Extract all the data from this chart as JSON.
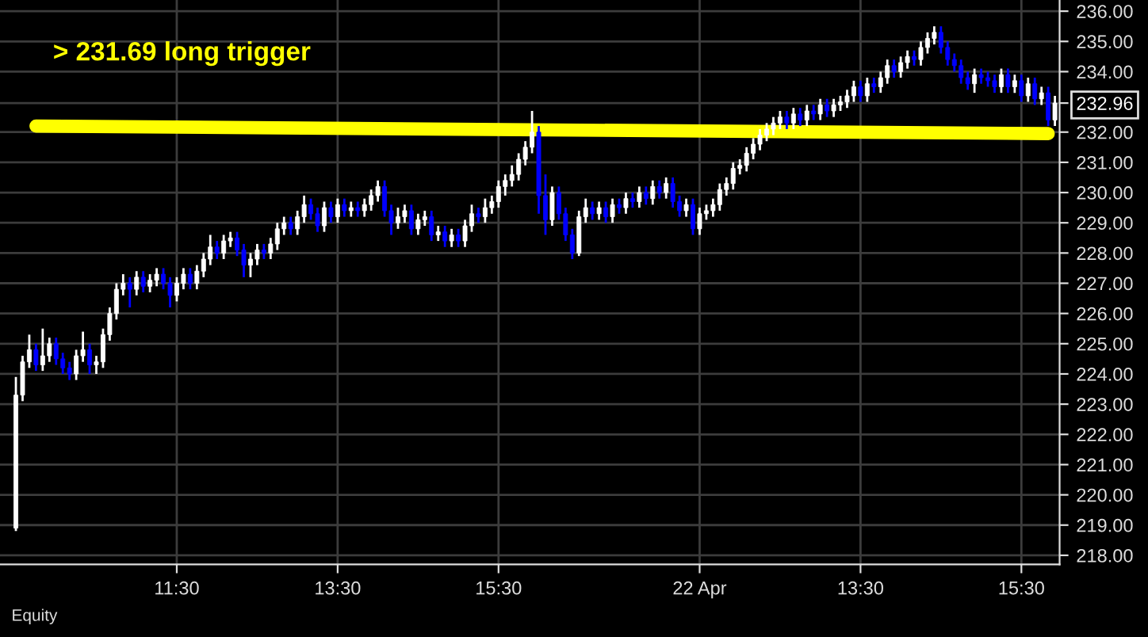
{
  "chart_data": {
    "type": "candlestick",
    "categories": [
      null,
      null,
      null,
      null,
      null,
      null,
      null,
      null,
      null,
      null,
      null,
      null,
      null,
      null,
      null,
      null,
      null,
      null,
      null,
      null,
      null,
      null,
      null,
      null,
      "11:30",
      null,
      null,
      null,
      null,
      null,
      null,
      null,
      null,
      null,
      null,
      null,
      null,
      null,
      null,
      null,
      null,
      null,
      null,
      null,
      null,
      null,
      null,
      null,
      "13:30",
      null,
      null,
      null,
      null,
      null,
      null,
      null,
      null,
      null,
      null,
      null,
      null,
      null,
      null,
      null,
      null,
      null,
      null,
      null,
      null,
      null,
      null,
      null,
      "15:30",
      null,
      null,
      null,
      null,
      null,
      null,
      null,
      null,
      null,
      null,
      null,
      null,
      null,
      null,
      null,
      null,
      null,
      null,
      null,
      null,
      null,
      null,
      null,
      null,
      null,
      null,
      null,
      null,
      null,
      "22 Apr",
      null,
      null,
      null,
      null,
      null,
      null,
      null,
      null,
      null,
      null,
      null,
      null,
      null,
      null,
      null,
      null,
      null,
      null,
      null,
      null,
      null,
      null,
      null,
      "13:30",
      null,
      null,
      null,
      null,
      null,
      null,
      null,
      null,
      null,
      null,
      null,
      null,
      null,
      null,
      null,
      null,
      null,
      null,
      null,
      null,
      null,
      null,
      null,
      "15:30",
      null,
      null,
      null,
      null,
      null
    ],
    "series": [
      {
        "ohlc": [
          [
            218.9,
            223.9,
            218.8,
            223.3
          ],
          [
            223.3,
            224.6,
            223.1,
            224.4
          ],
          [
            224.4,
            225.3,
            224.2,
            224.8
          ],
          [
            224.8,
            225.0,
            224.1,
            224.3
          ],
          [
            224.3,
            225.5,
            224.1,
            224.6
          ],
          [
            224.6,
            225.2,
            224.4,
            225.0
          ],
          [
            225.0,
            225.2,
            224.3,
            224.5
          ],
          [
            224.5,
            224.7,
            224.0,
            224.2
          ],
          [
            224.2,
            224.4,
            223.8,
            224.0
          ],
          [
            224.0,
            224.8,
            223.8,
            224.6
          ],
          [
            224.6,
            225.4,
            224.4,
            224.8
          ],
          [
            224.8,
            225.0,
            224.0,
            224.3
          ],
          [
            224.3,
            224.6,
            224.0,
            224.4
          ],
          [
            224.4,
            225.5,
            224.2,
            225.3
          ],
          [
            225.3,
            226.2,
            225.1,
            226.0
          ],
          [
            226.0,
            227.0,
            225.8,
            226.8
          ],
          [
            226.8,
            227.3,
            226.6,
            227.0
          ],
          [
            227.0,
            227.2,
            226.2,
            226.8
          ],
          [
            226.8,
            227.4,
            226.6,
            227.2
          ],
          [
            227.2,
            227.4,
            226.7,
            226.9
          ],
          [
            226.9,
            227.3,
            226.7,
            227.1
          ],
          [
            227.1,
            227.5,
            226.9,
            227.3
          ],
          [
            227.3,
            227.5,
            226.8,
            227.0
          ],
          [
            227.0,
            227.2,
            226.2,
            226.6
          ],
          [
            226.6,
            227.2,
            226.4,
            227.0
          ],
          [
            227.0,
            227.5,
            226.8,
            227.3
          ],
          [
            227.3,
            227.5,
            226.8,
            227.0
          ],
          [
            227.0,
            227.6,
            226.8,
            227.4
          ],
          [
            227.4,
            228.0,
            227.2,
            227.8
          ],
          [
            227.8,
            228.6,
            227.6,
            228.2
          ],
          [
            228.2,
            228.4,
            227.8,
            228.0
          ],
          [
            228.0,
            228.6,
            227.8,
            228.4
          ],
          [
            228.4,
            228.7,
            228.2,
            228.5
          ],
          [
            228.5,
            228.7,
            227.9,
            228.1
          ],
          [
            228.1,
            228.3,
            227.2,
            227.6
          ],
          [
            227.6,
            228.0,
            227.2,
            227.8
          ],
          [
            227.8,
            228.3,
            227.6,
            228.1
          ],
          [
            228.1,
            228.3,
            227.8,
            228.0
          ],
          [
            228.0,
            228.5,
            227.8,
            228.3
          ],
          [
            228.3,
            229.0,
            228.1,
            228.8
          ],
          [
            228.8,
            229.2,
            228.6,
            229.0
          ],
          [
            229.0,
            229.2,
            228.6,
            228.8
          ],
          [
            228.8,
            229.4,
            228.6,
            229.2
          ],
          [
            229.2,
            229.9,
            229.0,
            229.6
          ],
          [
            229.6,
            229.8,
            229.1,
            229.3
          ],
          [
            229.3,
            229.5,
            228.7,
            228.9
          ],
          [
            228.9,
            229.7,
            228.7,
            229.5
          ],
          [
            229.5,
            229.7,
            229.0,
            229.2
          ],
          [
            229.2,
            229.8,
            229.0,
            229.6
          ],
          [
            229.6,
            229.8,
            229.2,
            229.4
          ],
          [
            229.4,
            229.7,
            229.2,
            229.5
          ],
          [
            229.5,
            229.7,
            229.2,
            229.4
          ],
          [
            229.4,
            229.8,
            229.2,
            229.6
          ],
          [
            229.6,
            230.1,
            229.4,
            229.9
          ],
          [
            229.9,
            230.4,
            229.7,
            230.2
          ],
          [
            230.2,
            230.4,
            229.2,
            229.4
          ],
          [
            229.4,
            229.6,
            228.6,
            229.0
          ],
          [
            229.0,
            229.5,
            228.8,
            229.2
          ],
          [
            229.2,
            229.6,
            229.0,
            229.4
          ],
          [
            229.4,
            229.6,
            228.6,
            228.8
          ],
          [
            228.8,
            229.3,
            228.6,
            229.1
          ],
          [
            229.1,
            229.4,
            228.9,
            229.2
          ],
          [
            229.2,
            229.4,
            228.4,
            228.6
          ],
          [
            228.6,
            228.9,
            228.4,
            228.7
          ],
          [
            228.7,
            228.9,
            228.2,
            228.4
          ],
          [
            228.4,
            228.8,
            228.2,
            228.6
          ],
          [
            228.6,
            228.8,
            228.2,
            228.4
          ],
          [
            228.4,
            229.1,
            228.2,
            228.9
          ],
          [
            228.9,
            229.6,
            228.7,
            229.3
          ],
          [
            229.3,
            229.5,
            229.0,
            229.2
          ],
          [
            229.2,
            229.8,
            229.0,
            229.5
          ],
          [
            229.5,
            229.9,
            229.3,
            229.7
          ],
          [
            229.7,
            230.4,
            229.5,
            230.2
          ],
          [
            230.2,
            230.6,
            229.9,
            230.4
          ],
          [
            230.4,
            230.9,
            230.2,
            230.6
          ],
          [
            230.6,
            231.3,
            230.4,
            231.1
          ],
          [
            231.1,
            231.7,
            230.9,
            231.5
          ],
          [
            231.5,
            232.7,
            231.3,
            232.0
          ],
          [
            232.0,
            232.2,
            229.3,
            229.9
          ],
          [
            229.9,
            230.6,
            228.6,
            229.1
          ],
          [
            229.1,
            230.2,
            228.9,
            230.0
          ],
          [
            230.0,
            230.2,
            229.1,
            229.3
          ],
          [
            229.3,
            229.5,
            228.4,
            228.6
          ],
          [
            228.6,
            228.8,
            227.8,
            228.0
          ],
          [
            228.0,
            229.4,
            227.9,
            229.2
          ],
          [
            229.2,
            229.8,
            229.0,
            229.5
          ],
          [
            229.5,
            229.7,
            229.1,
            229.3
          ],
          [
            229.3,
            229.7,
            229.1,
            229.5
          ],
          [
            229.5,
            229.7,
            229.0,
            229.2
          ],
          [
            229.2,
            229.8,
            229.0,
            229.6
          ],
          [
            229.6,
            229.8,
            229.3,
            229.5
          ],
          [
            229.5,
            230.0,
            229.3,
            229.8
          ],
          [
            229.8,
            230.0,
            229.5,
            229.7
          ],
          [
            229.7,
            230.2,
            229.5,
            230.0
          ],
          [
            230.0,
            230.2,
            229.6,
            229.8
          ],
          [
            229.8,
            230.4,
            229.6,
            230.2
          ],
          [
            230.2,
            230.4,
            229.8,
            230.0
          ],
          [
            230.0,
            230.5,
            229.8,
            230.3
          ],
          [
            230.3,
            230.5,
            229.5,
            229.7
          ],
          [
            229.7,
            229.9,
            229.2,
            229.4
          ],
          [
            229.4,
            229.8,
            229.2,
            229.6
          ],
          [
            229.6,
            229.8,
            228.6,
            228.8
          ],
          [
            228.8,
            229.5,
            228.6,
            229.3
          ],
          [
            229.3,
            229.6,
            229.1,
            229.4
          ],
          [
            229.4,
            229.8,
            229.2,
            229.6
          ],
          [
            229.6,
            230.3,
            229.4,
            230.1
          ],
          [
            230.1,
            230.5,
            229.9,
            230.3
          ],
          [
            230.3,
            231.0,
            230.1,
            230.8
          ],
          [
            230.8,
            231.1,
            230.6,
            230.9
          ],
          [
            230.9,
            231.5,
            230.7,
            231.3
          ],
          [
            231.3,
            231.8,
            231.1,
            231.6
          ],
          [
            231.6,
            232.1,
            231.4,
            231.9
          ],
          [
            231.9,
            232.3,
            231.7,
            232.1
          ],
          [
            232.1,
            232.5,
            231.9,
            232.3
          ],
          [
            232.3,
            232.7,
            232.1,
            232.5
          ],
          [
            232.5,
            232.7,
            232.1,
            232.3
          ],
          [
            232.3,
            232.8,
            232.1,
            232.6
          ],
          [
            232.6,
            232.8,
            232.2,
            232.4
          ],
          [
            232.4,
            232.9,
            232.2,
            232.7
          ],
          [
            232.7,
            232.9,
            232.4,
            232.6
          ],
          [
            232.6,
            233.1,
            232.4,
            232.9
          ],
          [
            232.9,
            233.1,
            232.5,
            232.7
          ],
          [
            232.7,
            233.1,
            232.5,
            232.9
          ],
          [
            232.9,
            233.2,
            232.7,
            233.0
          ],
          [
            233.0,
            233.4,
            232.8,
            233.2
          ],
          [
            233.2,
            233.7,
            233.0,
            233.5
          ],
          [
            233.5,
            233.7,
            233.0,
            233.2
          ],
          [
            233.2,
            233.8,
            233.0,
            233.6
          ],
          [
            233.6,
            233.8,
            233.3,
            233.5
          ],
          [
            233.5,
            234.0,
            233.3,
            233.8
          ],
          [
            233.8,
            234.4,
            233.6,
            234.2
          ],
          [
            234.2,
            234.4,
            233.8,
            234.0
          ],
          [
            234.0,
            234.5,
            233.8,
            234.3
          ],
          [
            234.3,
            234.7,
            234.1,
            234.5
          ],
          [
            234.5,
            234.7,
            234.2,
            234.4
          ],
          [
            234.4,
            235.0,
            234.2,
            234.8
          ],
          [
            234.8,
            235.3,
            234.6,
            235.1
          ],
          [
            235.1,
            235.5,
            234.9,
            235.3
          ],
          [
            235.3,
            235.5,
            234.6,
            234.8
          ],
          [
            234.8,
            235.0,
            234.2,
            234.4
          ],
          [
            234.4,
            234.6,
            234.0,
            234.2
          ],
          [
            234.2,
            234.4,
            233.6,
            233.8
          ],
          [
            233.8,
            234.0,
            233.4,
            233.6
          ],
          [
            233.6,
            234.1,
            233.3,
            233.9
          ],
          [
            233.9,
            234.1,
            233.6,
            233.8
          ],
          [
            233.8,
            234.0,
            233.5,
            233.7
          ],
          [
            233.7,
            233.9,
            233.3,
            233.5
          ],
          [
            233.5,
            234.1,
            233.3,
            233.9
          ],
          [
            233.9,
            234.1,
            233.3,
            233.5
          ],
          [
            233.5,
            233.9,
            233.3,
            233.7
          ],
          [
            233.7,
            233.9,
            233.0,
            233.2
          ],
          [
            233.2,
            233.8,
            233.0,
            233.6
          ],
          [
            233.6,
            233.8,
            232.9,
            233.1
          ],
          [
            233.1,
            233.5,
            232.9,
            233.3
          ],
          [
            233.3,
            233.5,
            232.2,
            232.4
          ],
          [
            232.4,
            233.2,
            232.2,
            232.96
          ]
        ],
        "colors": [
          "#ffffff",
          "#ffffff",
          "#ffffff",
          "#0000ff",
          "#ffffff",
          "#ffffff",
          "#0000ff",
          "#0000ff",
          "#0000ff",
          "#ffffff",
          "#ffffff",
          "#0000ff",
          "#ffffff",
          "#ffffff",
          "#ffffff",
          "#ffffff",
          "#ffffff",
          "#0000ff",
          "#ffffff",
          "#0000ff",
          "#ffffff",
          "#ffffff",
          "#0000ff",
          "#0000ff",
          "#ffffff",
          "#ffffff",
          "#0000ff",
          "#ffffff",
          "#ffffff",
          "#ffffff",
          "#0000ff",
          "#ffffff",
          "#ffffff",
          "#0000ff",
          "#0000ff",
          "#ffffff",
          "#ffffff",
          "#0000ff",
          "#ffffff",
          "#ffffff",
          "#ffffff",
          "#0000ff",
          "#ffffff",
          "#ffffff",
          "#0000ff",
          "#0000ff",
          "#ffffff",
          "#0000ff",
          "#ffffff",
          "#0000ff",
          "#ffffff",
          "#0000ff",
          "#ffffff",
          "#ffffff",
          "#ffffff",
          "#0000ff",
          "#0000ff",
          "#ffffff",
          "#ffffff",
          "#0000ff",
          "#ffffff",
          "#ffffff",
          "#0000ff",
          "#ffffff",
          "#0000ff",
          "#ffffff",
          "#0000ff",
          "#ffffff",
          "#ffffff",
          "#0000ff",
          "#ffffff",
          "#ffffff",
          "#ffffff",
          "#ffffff",
          "#ffffff",
          "#ffffff",
          "#ffffff",
          "#ffffff",
          "#0000ff",
          "#0000ff",
          "#ffffff",
          "#0000ff",
          "#0000ff",
          "#0000ff",
          "#ffffff",
          "#ffffff",
          "#0000ff",
          "#ffffff",
          "#0000ff",
          "#ffffff",
          "#0000ff",
          "#ffffff",
          "#0000ff",
          "#ffffff",
          "#0000ff",
          "#ffffff",
          "#0000ff",
          "#ffffff",
          "#0000ff",
          "#0000ff",
          "#ffffff",
          "#0000ff",
          "#ffffff",
          "#ffffff",
          "#ffffff",
          "#ffffff",
          "#ffffff",
          "#ffffff",
          "#ffffff",
          "#ffffff",
          "#ffffff",
          "#ffffff",
          "#ffffff",
          "#ffffff",
          "#ffffff",
          "#0000ff",
          "#ffffff",
          "#0000ff",
          "#ffffff",
          "#0000ff",
          "#ffffff",
          "#0000ff",
          "#ffffff",
          "#ffffff",
          "#ffffff",
          "#ffffff",
          "#0000ff",
          "#ffffff",
          "#0000ff",
          "#ffffff",
          "#ffffff",
          "#0000ff",
          "#ffffff",
          "#ffffff",
          "#0000ff",
          "#ffffff",
          "#ffffff",
          "#ffffff",
          "#0000ff",
          "#0000ff",
          "#0000ff",
          "#0000ff",
          "#0000ff",
          "#ffffff",
          "#0000ff",
          "#0000ff",
          "#0000ff",
          "#ffffff",
          "#0000ff",
          "#ffffff",
          "#0000ff",
          "#ffffff",
          "#0000ff",
          "#ffffff",
          "#0000ff",
          "#ffffff"
        ]
      },
      {
        "type": "line",
        "name": "> 231.69 long trigger",
        "color": "#ffff00",
        "values": [
          null,
          null,
          null,
          232.2,
          null,
          null,
          null,
          null,
          null,
          null,
          null,
          null,
          null,
          null,
          null,
          null,
          null,
          null,
          null,
          null,
          null,
          null,
          null,
          null,
          null,
          null,
          null,
          null,
          null,
          null,
          null,
          null,
          null,
          null,
          null,
          null,
          null,
          null,
          null,
          null,
          null,
          null,
          null,
          null,
          null,
          null,
          null,
          null,
          null,
          null,
          null,
          null,
          null,
          null,
          null,
          null,
          null,
          null,
          null,
          null,
          null,
          null,
          null,
          null,
          null,
          null,
          null,
          null,
          null,
          null,
          null,
          null,
          null,
          null,
          null,
          null,
          null,
          null,
          null,
          null,
          null,
          null,
          null,
          null,
          null,
          null,
          null,
          null,
          null,
          null,
          null,
          null,
          null,
          null,
          null,
          null,
          null,
          null,
          null,
          null,
          null,
          null,
          null,
          null,
          null,
          null,
          null,
          null,
          null,
          null,
          null,
          null,
          null,
          null,
          null,
          null,
          null,
          null,
          null,
          null,
          null,
          null,
          null,
          null,
          null,
          null,
          null,
          null,
          null,
          null,
          null,
          null,
          null,
          null,
          null,
          null,
          null,
          null,
          null,
          null,
          null,
          null,
          null,
          null,
          null,
          null,
          null,
          null,
          null,
          null,
          null,
          null,
          null,
          null,
          231.95,
          null
        ]
      }
    ],
    "ylim": [
      217.7,
      236.37
    ],
    "yticks": [
      {
        "value": 218,
        "label": "218.00"
      },
      {
        "value": 219,
        "label": "219.00"
      },
      {
        "value": 220,
        "label": "220.00"
      },
      {
        "value": 221,
        "label": "221.00"
      },
      {
        "value": 222,
        "label": "222.00"
      },
      {
        "value": 223,
        "label": "223.00"
      },
      {
        "value": 224,
        "label": "224.00"
      },
      {
        "value": 225,
        "label": "225.00"
      },
      {
        "value": 226,
        "label": "226.00"
      },
      {
        "value": 227,
        "label": "227.00"
      },
      {
        "value": 228,
        "label": "228.00"
      },
      {
        "value": 229,
        "label": "229.00"
      },
      {
        "value": 230,
        "label": "230.00"
      },
      {
        "value": 231,
        "label": "231.00"
      },
      {
        "value": 232,
        "label": "232.00"
      },
      {
        "value": 232.96,
        "label": "232.96"
      },
      {
        "value": 234,
        "label": "234.00"
      },
      {
        "value": 235,
        "label": "235.00"
      },
      {
        "value": 236,
        "label": "236.00"
      }
    ],
    "grid": true,
    "annotations": [
      "Equity"
    ]
  }
}
